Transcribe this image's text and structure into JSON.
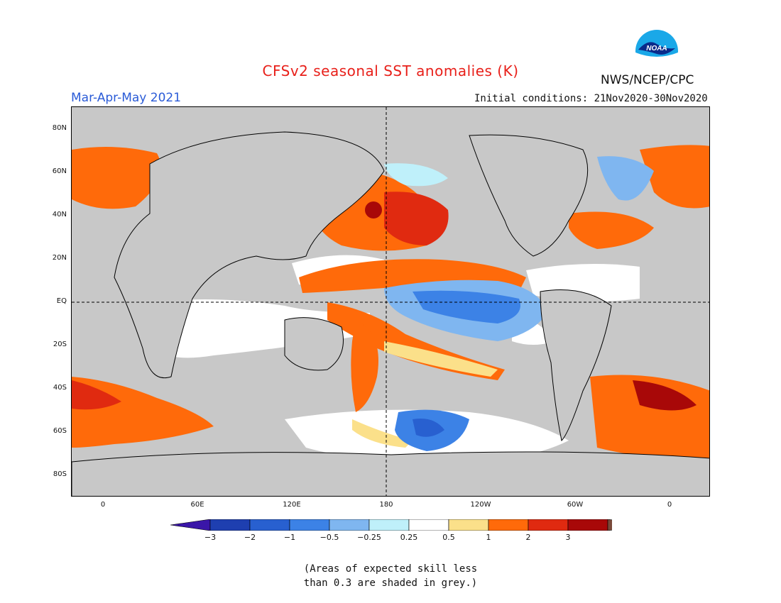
{
  "header": {
    "title": "CFSv2 seasonal SST anomalies (K)",
    "period": "Mar-Apr-May 2021",
    "initial_conditions": "Initial conditions: 21Nov2020-30Nov2020",
    "agency": "NWS/NCEP/CPC",
    "logo_text": "NOAA"
  },
  "map": {
    "lat_labels": [
      "80N",
      "60N",
      "40N",
      "20N",
      "EQ",
      "20S",
      "40S",
      "60S",
      "80S"
    ],
    "lon_labels": [
      "0",
      "60E",
      "120E",
      "180",
      "120W",
      "60W",
      "0"
    ],
    "land_color": "#c8c8c8"
  },
  "legend": {
    "labels": [
      "-3",
      "-2",
      "-1",
      "-0.5",
      "-0.25",
      "0.25",
      "0.5",
      "1",
      "2",
      "3"
    ],
    "colors": [
      "#1e3fb0",
      "#2860d0",
      "#3c82e6",
      "#7fb6f0",
      "#bff0fa",
      "#ffffff",
      "#fbe08a",
      "#ff6a0a",
      "#e02a10",
      "#a80808"
    ],
    "low_arrow_color": "#3a16a8",
    "high_arrow_color": "#7a4a3a"
  },
  "note": {
    "line1": "(Areas of expected skill less",
    "line2": "than 0.3 are shaded in grey.)"
  }
}
